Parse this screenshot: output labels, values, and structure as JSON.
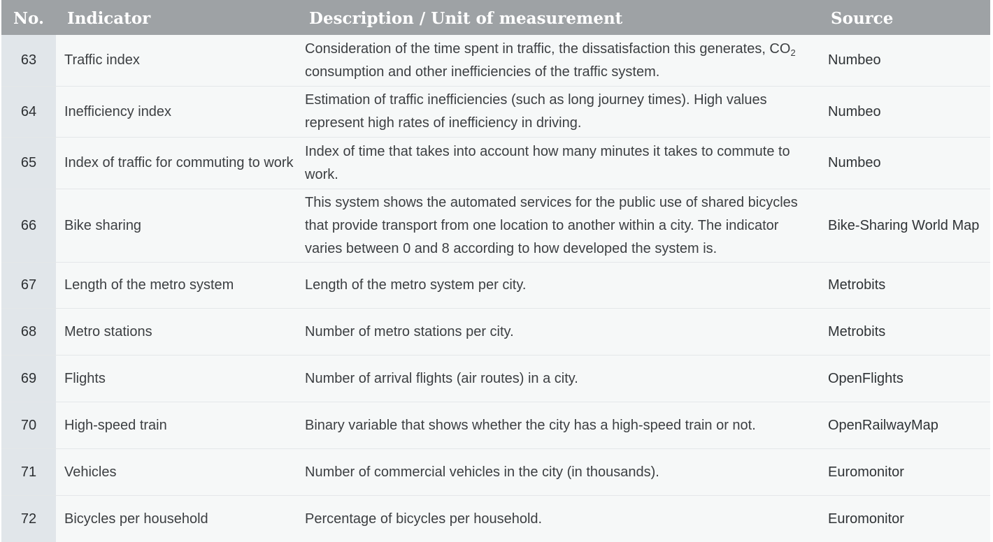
{
  "table": {
    "headers": {
      "no": "No.",
      "indicator": "Indicator",
      "description": "Description / Unit of measurement",
      "source": "Source"
    },
    "rows": [
      {
        "no": "63",
        "indicator": "Traffic index",
        "description_pre": "Consideration of the time spent in traffic, the dissatisfaction this generates, CO",
        "description_sub": "2",
        "description_post": " consumption and other inefficiencies of the traffic system.",
        "source": "Numbeo"
      },
      {
        "no": "64",
        "indicator": "Inefficiency index",
        "description": "Estimation of traffic inefficiencies (such as long journey times). High values represent high rates of inefficiency in driving.",
        "source": "Numbeo"
      },
      {
        "no": "65",
        "indicator": "Index of traffic for commuting to work",
        "description": "Index of time that takes into account how many minutes it takes to commute to work.",
        "source": "Numbeo"
      },
      {
        "no": "66",
        "indicator": "Bike sharing",
        "description": "This system shows the automated services for the public use of shared bicycles that provide transport from one location to another within a city. The indicator varies between 0 and 8 according to how developed the system is.",
        "source": "Bike-Sharing World Map"
      },
      {
        "no": "67",
        "indicator": "Length of the metro system",
        "description": "Length of the metro system per city.",
        "source": "Metrobits"
      },
      {
        "no": "68",
        "indicator": "Metro stations",
        "description": "Number of metro stations per city.",
        "source": "Metrobits"
      },
      {
        "no": "69",
        "indicator": "Flights",
        "description": "Number of arrival flights (air routes) in a city.",
        "source": "OpenFlights"
      },
      {
        "no": "70",
        "indicator": "High-speed train",
        "description": "Binary variable that shows whether the city has a high-speed train or not.",
        "source": "OpenRailwayMap"
      },
      {
        "no": "71",
        "indicator": "Vehicles",
        "description": "Number of commercial vehicles in the city (in thousands).",
        "source": "Euromonitor"
      },
      {
        "no": "72",
        "indicator": "Bicycles per household",
        "description": "Percentage of bicycles per household.",
        "source": "Euromonitor"
      }
    ]
  }
}
